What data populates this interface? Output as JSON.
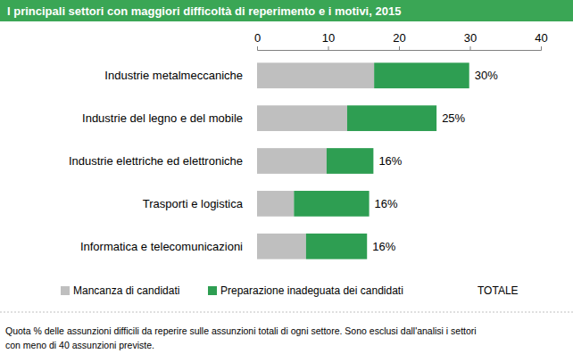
{
  "chart_data": {
    "type": "bar",
    "orientation": "horizontal",
    "stacked": true,
    "title": "I principali settori con maggiori difficoltà di reperimento e i motivi, 2015",
    "categories": [
      "Industrie metalmeccaniche",
      "Industrie del legno e del mobile",
      "Industrie elettriche ed elettroniche",
      "Trasporti e logistica",
      "Informatica e telecomunicazioni"
    ],
    "series": [
      {
        "name": "Mancanza di candidati",
        "color": "#bfbfbf",
        "values": [
          16.5,
          12.7,
          9.8,
          5.2,
          6.9
        ]
      },
      {
        "name": "Preparazione inadeguata dei candidati",
        "color": "#2e9e52",
        "values": [
          13.4,
          12.6,
          6.6,
          10.6,
          8.6
        ]
      },
      {
        "name": "TOTALE",
        "type": "label",
        "values": [
          29.9,
          25.3,
          16.4,
          15.8,
          15.5
        ],
        "value_labels": [
          "30%",
          "25%",
          "16%",
          "16%",
          "16%"
        ]
      }
    ],
    "xlim": [
      0,
      40
    ],
    "xticks": [
      0,
      10,
      20,
      30,
      40
    ],
    "grid": false,
    "legend": "bottom",
    "data_labels": true,
    "annotations": [
      "Quota % delle assunzioni difficili da reperire sulle assunzioni totali di ogni settore. Sono esclusi dall'analisi i settori",
      "con meno di 40 assunzioni previste."
    ]
  }
}
